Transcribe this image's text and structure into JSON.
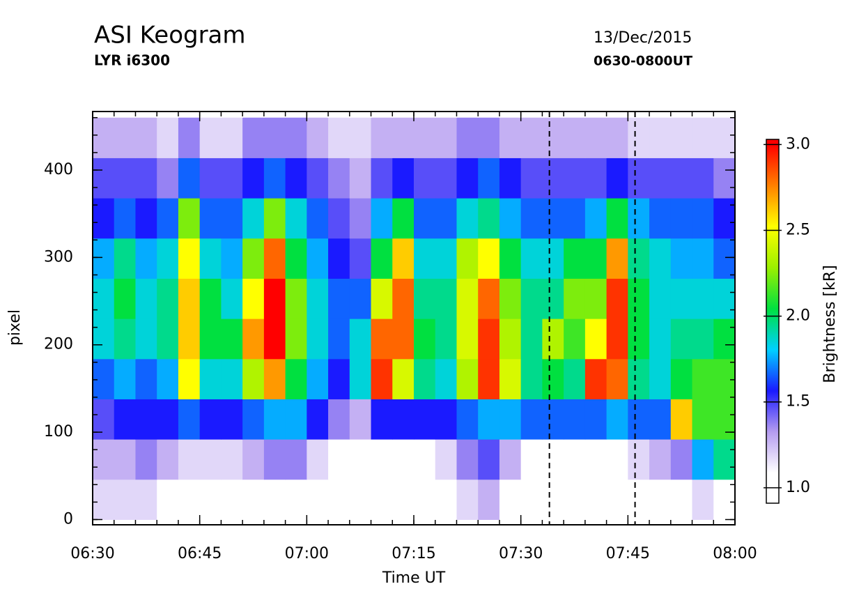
{
  "chart_data": {
    "type": "heatmap",
    "title": "ASI Keogram",
    "subtitle": "LYR i6300",
    "date": "13/Dec/2015",
    "time_range": "0630-0800UT",
    "xlabel": "Time UT",
    "ylabel": "pixel",
    "colorbar_label": "Brightness [kR]",
    "xlim": [
      0,
      90
    ],
    "ylim": [
      -6,
      467
    ],
    "xticks": [
      {
        "value": 0,
        "label": "06:30"
      },
      {
        "value": 15,
        "label": "06:45"
      },
      {
        "value": 30,
        "label": "07:00"
      },
      {
        "value": 45,
        "label": "07:15"
      },
      {
        "value": 60,
        "label": "07:30"
      },
      {
        "value": 75,
        "label": "07:45"
      },
      {
        "value": 90,
        "label": "08:00"
      }
    ],
    "yticks": [
      0,
      100,
      200,
      300,
      400
    ],
    "xminor": 3,
    "yminor": 20,
    "markers": [
      64,
      76
    ],
    "clim": [
      0.91,
      3.03
    ],
    "cticks": [
      {
        "value": 1.0,
        "label": "1.0"
      },
      {
        "value": 1.5,
        "label": "1.5"
      },
      {
        "value": 2.0,
        "label": "2.0"
      },
      {
        "value": 2.5,
        "label": "2.5"
      },
      {
        "value": 3.0,
        "label": "3.0"
      }
    ],
    "colorscale": [
      [
        1.0,
        "#ffffff"
      ],
      [
        1.25,
        "#b59cf0"
      ],
      [
        1.5,
        "#1a1aff"
      ],
      [
        1.75,
        "#00d0ff"
      ],
      [
        2.0,
        "#00e040"
      ],
      [
        2.25,
        "#9cf000"
      ],
      [
        2.5,
        "#ffff00"
      ],
      [
        2.75,
        "#ff8000"
      ],
      [
        3.0,
        "#ff0000"
      ]
    ],
    "x_bins": [
      0,
      3,
      6,
      9,
      12,
      15,
      18,
      21,
      24,
      27,
      30,
      33,
      36,
      39,
      42,
      45,
      48,
      51,
      54,
      57,
      60,
      63,
      66,
      69,
      72,
      75,
      78,
      81,
      84,
      87,
      90
    ],
    "y_bins": [
      0,
      46,
      92,
      138,
      184,
      230,
      276,
      322,
      368,
      414,
      460
    ],
    "z": [
      [
        1.1,
        1.1,
        1.1,
        1.0,
        0.9,
        0.9,
        0.9,
        0.9,
        1.0,
        1.0,
        0.9,
        0.9,
        0.9,
        0.9,
        0.9,
        0.9,
        0.9,
        1.1,
        1.2,
        1.0,
        0.9,
        0.9,
        0.9,
        0.9,
        0.9,
        0.9,
        0.9,
        1.0,
        1.1,
        1.0
      ],
      [
        1.2,
        1.2,
        1.3,
        1.2,
        1.1,
        1.1,
        1.1,
        1.2,
        1.3,
        1.3,
        1.1,
        1.0,
        1.0,
        1.0,
        1.0,
        1.0,
        1.1,
        1.3,
        1.4,
        1.2,
        1.0,
        1.0,
        1.0,
        1.0,
        1.0,
        1.1,
        1.2,
        1.3,
        1.7,
        1.9
      ],
      [
        1.4,
        1.5,
        1.5,
        1.5,
        1.6,
        1.5,
        1.5,
        1.6,
        1.7,
        1.7,
        1.5,
        1.3,
        1.2,
        1.5,
        1.5,
        1.5,
        1.5,
        1.6,
        1.7,
        1.7,
        1.6,
        1.6,
        1.6,
        1.6,
        1.7,
        1.6,
        1.6,
        2.6,
        2.1,
        2.1
      ],
      [
        1.6,
        1.7,
        1.6,
        1.7,
        2.5,
        1.8,
        1.8,
        2.3,
        2.7,
        2.0,
        1.7,
        1.5,
        1.8,
        2.9,
        2.4,
        1.9,
        1.8,
        2.3,
        2.9,
        2.4,
        1.9,
        2.0,
        1.9,
        2.9,
        2.8,
        1.9,
        1.8,
        2.0,
        2.1,
        2.1
      ],
      [
        1.8,
        1.9,
        1.8,
        1.9,
        2.6,
        2.0,
        2.0,
        2.7,
        3.0,
        2.2,
        1.8,
        1.6,
        1.8,
        2.8,
        2.8,
        2.0,
        1.9,
        2.4,
        2.9,
        2.3,
        1.9,
        2.3,
        2.1,
        2.5,
        2.9,
        2.0,
        1.8,
        1.9,
        1.9,
        2.0
      ],
      [
        1.8,
        2.0,
        1.8,
        1.9,
        2.6,
        2.0,
        1.8,
        2.5,
        3.0,
        2.2,
        1.8,
        1.6,
        1.6,
        2.4,
        2.8,
        1.9,
        1.9,
        2.4,
        2.8,
        2.2,
        1.9,
        1.9,
        2.2,
        2.2,
        2.9,
        2.0,
        1.8,
        1.8,
        1.8,
        1.8
      ],
      [
        1.7,
        1.9,
        1.7,
        1.8,
        2.5,
        1.8,
        1.7,
        2.2,
        2.8,
        2.0,
        1.7,
        1.5,
        1.4,
        2.0,
        2.6,
        1.8,
        1.8,
        2.3,
        2.5,
        2.0,
        1.8,
        1.8,
        2.0,
        2.0,
        2.7,
        1.9,
        1.8,
        1.7,
        1.7,
        1.6
      ],
      [
        1.5,
        1.6,
        1.5,
        1.6,
        2.2,
        1.6,
        1.6,
        1.8,
        2.2,
        1.8,
        1.6,
        1.4,
        1.3,
        1.7,
        2.0,
        1.6,
        1.6,
        1.8,
        1.9,
        1.7,
        1.6,
        1.6,
        1.6,
        1.7,
        2.0,
        1.7,
        1.6,
        1.6,
        1.6,
        1.5
      ],
      [
        1.4,
        1.4,
        1.4,
        1.3,
        1.6,
        1.4,
        1.4,
        1.5,
        1.6,
        1.5,
        1.4,
        1.3,
        1.2,
        1.4,
        1.5,
        1.4,
        1.4,
        1.5,
        1.6,
        1.5,
        1.4,
        1.4,
        1.4,
        1.4,
        1.5,
        1.4,
        1.4,
        1.4,
        1.4,
        1.3
      ],
      [
        1.2,
        1.2,
        1.2,
        1.1,
        1.3,
        1.1,
        1.1,
        1.3,
        1.3,
        1.3,
        1.2,
        1.1,
        1.1,
        1.2,
        1.2,
        1.2,
        1.2,
        1.3,
        1.3,
        1.2,
        1.2,
        1.2,
        1.2,
        1.2,
        1.2,
        1.1,
        1.1,
        1.1,
        1.1,
        1.1
      ]
    ]
  }
}
